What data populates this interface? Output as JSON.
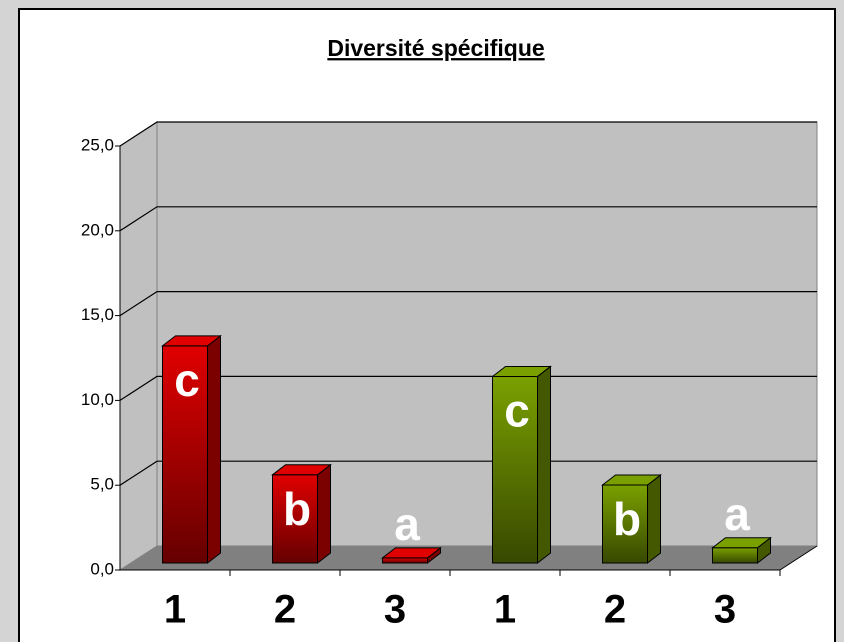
{
  "chart_data": {
    "type": "bar3d",
    "title": "Diversité spécifique",
    "categories": [
      "1",
      "2",
      "3",
      "1",
      "2",
      "3"
    ],
    "values": [
      12.8,
      5.2,
      0.3,
      11.0,
      4.6,
      0.9
    ],
    "colors": [
      "#e00000",
      "#e00000",
      "#e00000",
      "#7aa000",
      "#7aa000",
      "#7aa000"
    ],
    "annotations": [
      "c",
      "b",
      "a",
      "c",
      "b",
      "a"
    ],
    "ylim": [
      0,
      25
    ],
    "yticks": [
      {
        "value": 0,
        "label": "0,0"
      },
      {
        "value": 5,
        "label": "5,0"
      },
      {
        "value": 10,
        "label": "10,0"
      },
      {
        "value": 15,
        "label": "15,0"
      },
      {
        "value": 20,
        "label": "20,0"
      },
      {
        "value": 25,
        "label": "25,0"
      }
    ],
    "grid": true
  }
}
